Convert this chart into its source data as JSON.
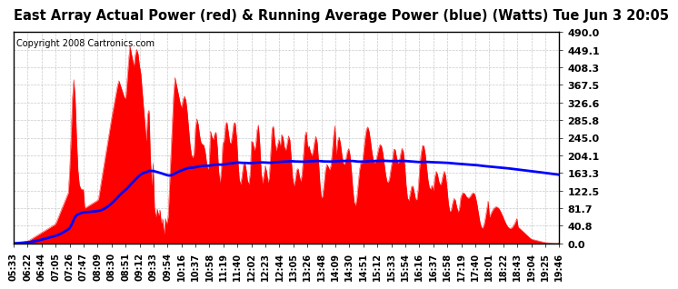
{
  "title": "East Array Actual Power (red) & Running Average Power (blue) (Watts) Tue Jun 3 20:05",
  "copyright": "Copyright 2008 Cartronics.com",
  "ylim": [
    0.0,
    490.0
  ],
  "yticks": [
    0.0,
    40.8,
    81.7,
    122.5,
    163.3,
    204.1,
    245.0,
    285.8,
    326.6,
    367.5,
    408.3,
    449.1,
    490.0
  ],
  "ytick_labels": [
    "0.0",
    "40.8",
    "81.7",
    "122.5",
    "163.3",
    "204.1",
    "245.0",
    "285.8",
    "326.6",
    "367.5",
    "408.3",
    "449.1",
    "490.0"
  ],
  "xtick_labels": [
    "05:33",
    "06:22",
    "06:44",
    "07:05",
    "07:26",
    "07:47",
    "08:09",
    "08:30",
    "08:51",
    "09:12",
    "09:33",
    "09:54",
    "10:16",
    "10:37",
    "10:58",
    "11:19",
    "11:40",
    "12:02",
    "12:23",
    "12:44",
    "13:05",
    "13:26",
    "13:48",
    "14:09",
    "14:30",
    "14:51",
    "15:12",
    "15:33",
    "15:54",
    "16:16",
    "16:37",
    "16:58",
    "17:19",
    "17:40",
    "18:01",
    "18:22",
    "18:43",
    "19:04",
    "19:25",
    "19:46"
  ],
  "actual_color": "#ff0000",
  "avg_color": "#0000ff",
  "bg_color": "#ffffff",
  "plot_bg_color": "#ffffff",
  "grid_color": "#bbbbbb",
  "title_fontsize": 10.5,
  "tick_fontsize": 8,
  "copyright_fontsize": 7
}
